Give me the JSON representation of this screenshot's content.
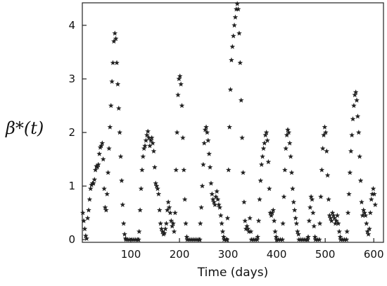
{
  "chart_data": {
    "type": "scatter",
    "marker": "star",
    "marker_color": "#222222",
    "xlabel": "Time (days)",
    "ylabel": "β*(t)",
    "xlim": [
      0,
      620
    ],
    "ylim": [
      -0.05,
      4.42
    ],
    "xticks": [
      100,
      200,
      300,
      400,
      500,
      600
    ],
    "yticks": [
      0,
      1,
      2,
      3,
      4
    ],
    "grid": false,
    "series": [
      {
        "points": [
          [
            1,
            0.5
          ],
          [
            3,
            0.35
          ],
          [
            5,
            0.2
          ],
          [
            7,
            0.07
          ],
          [
            9,
            0.02
          ],
          [
            11,
            0.4
          ],
          [
            13,
            0.55
          ],
          [
            15,
            0.75
          ],
          [
            17,
            0.95
          ],
          [
            19,
            1.02
          ],
          [
            21,
            1.05
          ],
          [
            23,
            1.05
          ],
          [
            25,
            1.12
          ],
          [
            27,
            1.3
          ],
          [
            29,
            1.37
          ],
          [
            31,
            1.35
          ],
          [
            33,
            1.4
          ],
          [
            35,
            1.6
          ],
          [
            37,
            1.72
          ],
          [
            39,
            1.75
          ],
          [
            41,
            1.8
          ],
          [
            43,
            1.5
          ],
          [
            45,
            0.95
          ],
          [
            47,
            0.6
          ],
          [
            49,
            0.55
          ],
          [
            51,
            0.85
          ],
          [
            53,
            1.25
          ],
          [
            55,
            1.7
          ],
          [
            57,
            2.1
          ],
          [
            59,
            2.5
          ],
          [
            61,
            2.95
          ],
          [
            63,
            3.3
          ],
          [
            65,
            3.7
          ],
          [
            67,
            3.85
          ],
          [
            69,
            3.75
          ],
          [
            71,
            3.3
          ],
          [
            73,
            2.9
          ],
          [
            75,
            2.45
          ],
          [
            77,
            2.0
          ],
          [
            79,
            1.55
          ],
          [
            81,
            1.1
          ],
          [
            83,
            0.65
          ],
          [
            85,
            0.3
          ],
          [
            87,
            0.1
          ],
          [
            89,
            0.02
          ],
          [
            90,
            0
          ],
          [
            94,
            0
          ],
          [
            98,
            0
          ],
          [
            102,
            0
          ],
          [
            106,
            0
          ],
          [
            110,
            0
          ],
          [
            114,
            0
          ],
          [
            116,
            0
          ],
          [
            117,
            0.15
          ],
          [
            119,
            0.55
          ],
          [
            121,
            0.95
          ],
          [
            123,
            1.3
          ],
          [
            125,
            1.55
          ],
          [
            127,
            1.7
          ],
          [
            129,
            1.75
          ],
          [
            131,
            1.85
          ],
          [
            133,
            1.95
          ],
          [
            135,
            2.02
          ],
          [
            137,
            1.9
          ],
          [
            139,
            1.75
          ],
          [
            141,
            1.85
          ],
          [
            143,
            1.9
          ],
          [
            145,
            1.8
          ],
          [
            147,
            1.65
          ],
          [
            149,
            1.35
          ],
          [
            151,
            1.05
          ],
          [
            153,
            1.0
          ],
          [
            155,
            0.95
          ],
          [
            157,
            0.85
          ],
          [
            159,
            0.55
          ],
          [
            161,
            0.3
          ],
          [
            163,
            0.2
          ],
          [
            165,
            0.15
          ],
          [
            167,
            0.1
          ],
          [
            169,
            0.12
          ],
          [
            171,
            0.2
          ],
          [
            173,
            0.3
          ],
          [
            175,
            0.55
          ],
          [
            177,
            0.7
          ],
          [
            179,
            0.6
          ],
          [
            181,
            0.5
          ],
          [
            183,
            0.35
          ],
          [
            185,
            0.25
          ],
          [
            187,
            0.3
          ],
          [
            189,
            0.15
          ],
          [
            191,
            0.5
          ],
          [
            193,
            1.3
          ],
          [
            195,
            2.0
          ],
          [
            197,
            2.7
          ],
          [
            199,
            3.0
          ],
          [
            201,
            3.05
          ],
          [
            203,
            2.9
          ],
          [
            205,
            2.5
          ],
          [
            207,
            1.9
          ],
          [
            209,
            1.3
          ],
          [
            211,
            0.75
          ],
          [
            213,
            0.3
          ],
          [
            215,
            0.05
          ],
          [
            216,
            0
          ],
          [
            220,
            0
          ],
          [
            224,
            0
          ],
          [
            228,
            0
          ],
          [
            232,
            0
          ],
          [
            236,
            0
          ],
          [
            240,
            0
          ],
          [
            242,
            0
          ],
          [
            243,
            0.3
          ],
          [
            245,
            0.6
          ],
          [
            247,
            1.0
          ],
          [
            249,
            1.4
          ],
          [
            251,
            1.8
          ],
          [
            253,
            2.05
          ],
          [
            255,
            2.1
          ],
          [
            257,
            2.0
          ],
          [
            259,
            1.85
          ],
          [
            261,
            1.6
          ],
          [
            263,
            1.35
          ],
          [
            265,
            1.05
          ],
          [
            267,
            0.85
          ],
          [
            269,
            0.75
          ],
          [
            271,
            0.7
          ],
          [
            273,
            0.65
          ],
          [
            275,
            0.8
          ],
          [
            277,
            0.9
          ],
          [
            279,
            0.75
          ],
          [
            281,
            0.65
          ],
          [
            283,
            0.6
          ],
          [
            285,
            0.45
          ],
          [
            287,
            0.3
          ],
          [
            289,
            0.15
          ],
          [
            291,
            0.05
          ],
          [
            292,
            0
          ],
          [
            296,
            0
          ],
          [
            298,
            0
          ],
          [
            299,
            0.4
          ],
          [
            301,
            1.3
          ],
          [
            303,
            2.1
          ],
          [
            305,
            2.8
          ],
          [
            307,
            3.35
          ],
          [
            309,
            3.6
          ],
          [
            311,
            3.8
          ],
          [
            313,
            4.0
          ],
          [
            315,
            4.15
          ],
          [
            317,
            4.3
          ],
          [
            319,
            4.4
          ],
          [
            321,
            4.3
          ],
          [
            323,
            3.85
          ],
          [
            325,
            3.3
          ],
          [
            327,
            2.6
          ],
          [
            329,
            1.9
          ],
          [
            331,
            1.25
          ],
          [
            333,
            0.7
          ],
          [
            335,
            0.35
          ],
          [
            337,
            0.2
          ],
          [
            339,
            0.25
          ],
          [
            341,
            0.2
          ],
          [
            343,
            0.15
          ],
          [
            345,
            0.4
          ],
          [
            347,
            0.15
          ],
          [
            348,
            0
          ],
          [
            352,
            0
          ],
          [
            356,
            0
          ],
          [
            360,
            0
          ],
          [
            361,
            0.05
          ],
          [
            363,
            0.35
          ],
          [
            365,
            0.75
          ],
          [
            367,
            1.1
          ],
          [
            369,
            1.4
          ],
          [
            371,
            1.55
          ],
          [
            373,
            1.7
          ],
          [
            375,
            1.8
          ],
          [
            377,
            1.95
          ],
          [
            379,
            2.0
          ],
          [
            381,
            1.85
          ],
          [
            383,
            1.45
          ],
          [
            385,
            0.95
          ],
          [
            387,
            0.5
          ],
          [
            389,
            0.45
          ],
          [
            391,
            0.5
          ],
          [
            393,
            0.55
          ],
          [
            395,
            0.35
          ],
          [
            397,
            0.15
          ],
          [
            399,
            0.05
          ],
          [
            400,
            0
          ],
          [
            404,
            0
          ],
          [
            408,
            0
          ],
          [
            412,
            0
          ],
          [
            413,
            0.3
          ],
          [
            415,
            0.8
          ],
          [
            417,
            1.3
          ],
          [
            419,
            1.7
          ],
          [
            421,
            1.95
          ],
          [
            423,
            2.05
          ],
          [
            425,
            2.0
          ],
          [
            427,
            1.8
          ],
          [
            429,
            1.55
          ],
          [
            431,
            1.25
          ],
          [
            433,
            0.95
          ],
          [
            435,
            0.7
          ],
          [
            437,
            0.55
          ],
          [
            439,
            0.4
          ],
          [
            441,
            0.3
          ],
          [
            443,
            0.15
          ],
          [
            445,
            0.1
          ],
          [
            446,
            0
          ],
          [
            450,
            0
          ],
          [
            454,
            0
          ],
          [
            458,
            0
          ],
          [
            462,
            0
          ],
          [
            464,
            0
          ],
          [
            465,
            0.05
          ],
          [
            467,
            0.35
          ],
          [
            469,
            0.6
          ],
          [
            471,
            0.8
          ],
          [
            473,
            0.75
          ],
          [
            475,
            0.5
          ],
          [
            477,
            0.25
          ],
          [
            479,
            0.05
          ],
          [
            480,
            0
          ],
          [
            484,
            0
          ],
          [
            488,
            0
          ],
          [
            489,
            0.3
          ],
          [
            491,
            0.8
          ],
          [
            493,
            1.3
          ],
          [
            495,
            1.7
          ],
          [
            497,
            1.95
          ],
          [
            499,
            2.1
          ],
          [
            501,
            2.0
          ],
          [
            503,
            1.65
          ],
          [
            505,
            1.2
          ],
          [
            507,
            0.75
          ],
          [
            509,
            0.45
          ],
          [
            511,
            0.4
          ],
          [
            513,
            0.35
          ],
          [
            515,
            0.5
          ],
          [
            517,
            0.45
          ],
          [
            519,
            0.4
          ],
          [
            521,
            0.3
          ],
          [
            523,
            0.35
          ],
          [
            525,
            0.45
          ],
          [
            527,
            0.3
          ],
          [
            529,
            0.15
          ],
          [
            531,
            0.05
          ],
          [
            532,
            0
          ],
          [
            536,
            0
          ],
          [
            540,
            0
          ],
          [
            544,
            0
          ],
          [
            545,
            0.15
          ],
          [
            547,
            0.5
          ],
          [
            549,
            0.85
          ],
          [
            551,
            1.25
          ],
          [
            553,
            1.65
          ],
          [
            555,
            1.95
          ],
          [
            557,
            2.25
          ],
          [
            559,
            2.5
          ],
          [
            561,
            2.7
          ],
          [
            563,
            2.75
          ],
          [
            565,
            2.6
          ],
          [
            567,
            2.3
          ],
          [
            569,
            2.0
          ],
          [
            571,
            1.55
          ],
          [
            573,
            1.1
          ],
          [
            575,
            0.7
          ],
          [
            577,
            0.45
          ],
          [
            579,
            0.55
          ],
          [
            581,
            0.5
          ],
          [
            583,
            0.45
          ],
          [
            585,
            0.3
          ],
          [
            587,
            0.15
          ],
          [
            589,
            0.1
          ],
          [
            591,
            0.2
          ],
          [
            593,
            0.5
          ],
          [
            595,
            0.75
          ],
          [
            597,
            0.85
          ],
          [
            599,
            0.95
          ],
          [
            601,
            0.85
          ],
          [
            603,
            0.65
          ]
        ]
      }
    ]
  }
}
